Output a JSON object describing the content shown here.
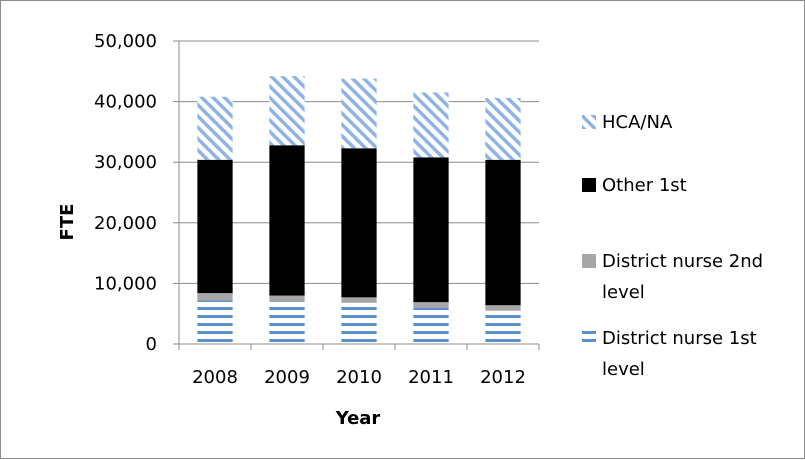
{
  "chart_data": {
    "type": "bar",
    "stacked": true,
    "title": "",
    "xlabel": "Year",
    "ylabel": "FTE",
    "categories": [
      "2008",
      "2009",
      "2010",
      "2011",
      "2012"
    ],
    "ylim": [
      0,
      50000
    ],
    "yticks": [
      0,
      10000,
      20000,
      30000,
      40000,
      50000
    ],
    "ytick_labels": [
      "0",
      "10,000",
      "20,000",
      "30,000",
      "40,000",
      "50,000"
    ],
    "grid": true,
    "legend_position": "right",
    "series": [
      {
        "name": "District nurse 1st level",
        "name_lines": [
          "District nurse 1st",
          "level"
        ],
        "values": [
          7200,
          7000,
          6800,
          6000,
          5500
        ],
        "pattern": "horizontal-stripes",
        "color": "#5b8fd0"
      },
      {
        "name": "District nurse 2nd level",
        "name_lines": [
          "District nurse 2nd",
          "level"
        ],
        "values": [
          1200,
          1000,
          900,
          900,
          900
        ],
        "pattern": "solid",
        "color": "#a6a6a6"
      },
      {
        "name": "Other 1st",
        "name_lines": [
          "Other 1st"
        ],
        "values": [
          22000,
          24800,
          24600,
          23900,
          24000
        ],
        "pattern": "solid",
        "color": "#000000"
      },
      {
        "name": "HCA/NA",
        "name_lines": [
          "HCA/NA"
        ],
        "values": [
          10400,
          11400,
          11500,
          10700,
          10200
        ],
        "pattern": "diagonal-stripes",
        "color": "#8fb4e3"
      }
    ]
  }
}
